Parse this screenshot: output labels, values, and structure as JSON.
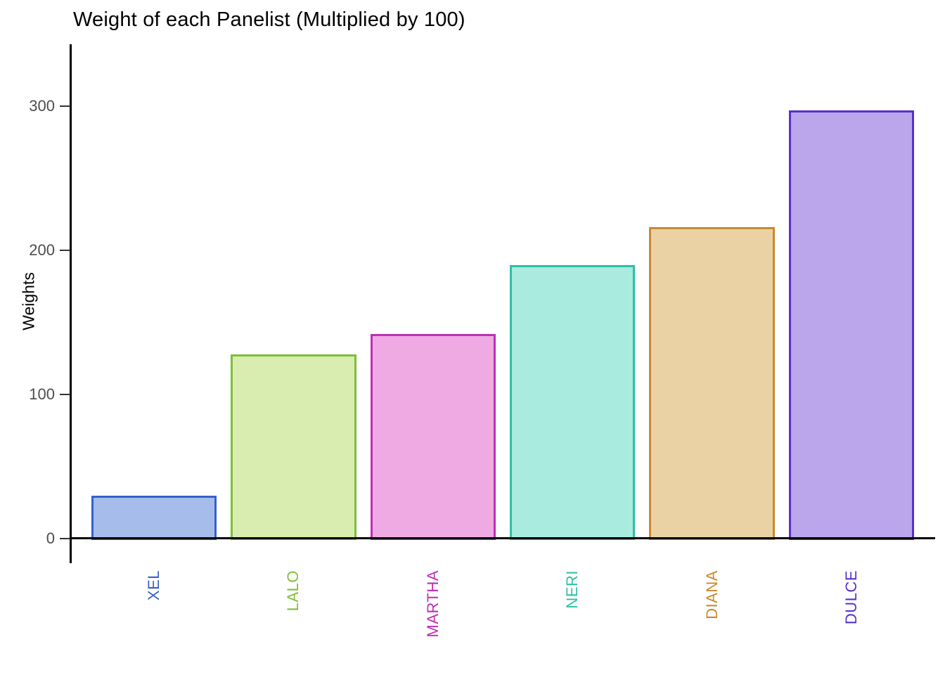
{
  "title": "Weight of each Panelist (Multiplied by 100)",
  "chart_data": {
    "type": "bar",
    "title": "Weight of each Panelist (Multiplied by 100)",
    "xlabel": "",
    "ylabel": "Weights",
    "categories": [
      "XEL",
      "LALO",
      "MARTHA",
      "NERI",
      "DIANA",
      "DULCE"
    ],
    "values": [
      30,
      128,
      142,
      190,
      216,
      297
    ],
    "bar_fill_colors": [
      "#a6bdeb",
      "#d9edb0",
      "#efaae4",
      "#aaebdf",
      "#ebd2a5",
      "#bca6eb"
    ],
    "bar_border_colors": [
      "#3561cb",
      "#7fbe38",
      "#c02fb6",
      "#2fbfa6",
      "#c9892f",
      "#5630cd"
    ],
    "x_label_colors": [
      "#3561cb",
      "#7fbe38",
      "#c02fb6",
      "#2fbfa6",
      "#c9892f",
      "#5630cd"
    ],
    "yticks": [
      0,
      100,
      200,
      300
    ],
    "ytick_labels": [
      "0",
      "100",
      "200",
      "300"
    ],
    "ylim": [
      0,
      342
    ],
    "grid": false,
    "legend": "none",
    "bar_relative_width": 0.9
  },
  "style_colors": {
    "background": "#ffffff",
    "axis_line": "#000000",
    "tick_mark": "#333333",
    "tick_label_text": "#4d4d4d",
    "title_text": "#000000"
  }
}
